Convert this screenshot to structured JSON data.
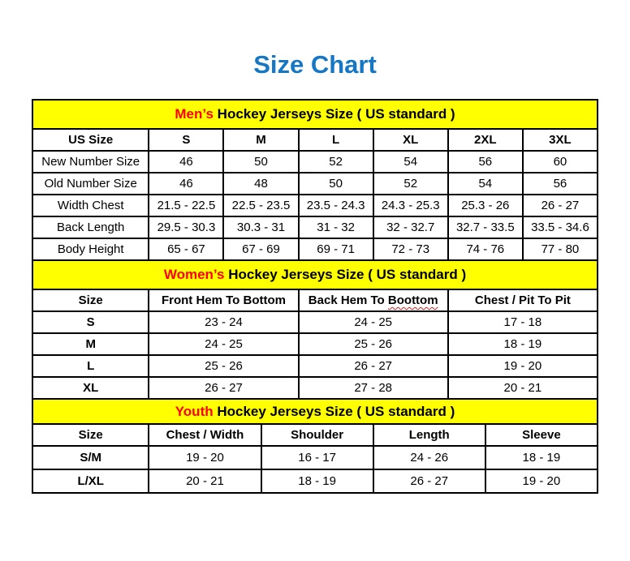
{
  "page": {
    "title": "Size Chart"
  },
  "colors": {
    "title_blue": "#1677c4",
    "band_yellow": "#ffff00",
    "highlight_red": "#ff0000",
    "border_black": "#000000",
    "squiggle_red": "#cc2222"
  },
  "men": {
    "band": {
      "highlight": "Men’s",
      "rest": "Hockey Jerseys Size ( US standard )"
    },
    "header": [
      "US Size",
      "S",
      "M",
      "L",
      "XL",
      "2XL",
      "3XL"
    ],
    "rows": [
      {
        "label": "New Number Size",
        "values": [
          "46",
          "50",
          "52",
          "54",
          "56",
          "60"
        ]
      },
      {
        "label": "Old Number Size",
        "values": [
          "46",
          "48",
          "50",
          "52",
          "54",
          "56"
        ]
      },
      {
        "label": "Width Chest",
        "values": [
          "21.5 - 22.5",
          "22.5 - 23.5",
          "23.5 - 24.3",
          "24.3 - 25.3",
          "25.3 - 26",
          "26 - 27"
        ]
      },
      {
        "label": "Back Length",
        "values": [
          "29.5 - 30.3",
          "30.3 - 31",
          "31 - 32",
          "32 - 32.7",
          "32.7 - 33.5",
          "33.5 - 34.6"
        ]
      },
      {
        "label": "Body Height",
        "values": [
          "65 - 67",
          "67 - 69",
          "69 - 71",
          "72 - 73",
          "74 - 76",
          "77 - 80"
        ]
      }
    ]
  },
  "women": {
    "band": {
      "highlight": "Women’s",
      "rest": "Hockey Jerseys Size ( US standard )"
    },
    "header_cells": [
      {
        "text": "Size"
      },
      {
        "text": "Front Hem To Bottom"
      },
      {
        "prefix": "Back Hem To",
        "misspelled": "Boottom"
      },
      {
        "text": "Chest / Pit To Pit"
      }
    ],
    "rows": [
      {
        "label": "S",
        "values": [
          "23 - 24",
          "24 - 25",
          "17 - 18"
        ]
      },
      {
        "label": "M",
        "values": [
          "24 - 25",
          "25 - 26",
          "18 - 19"
        ]
      },
      {
        "label": "L",
        "values": [
          "25 - 26",
          "26 - 27",
          "19 - 20"
        ]
      },
      {
        "label": "XL",
        "values": [
          "26 - 27",
          "27 - 28",
          "20 - 21"
        ]
      }
    ]
  },
  "youth": {
    "band": {
      "highlight": "Youth",
      "rest": "Hockey Jerseys Size ( US standard )"
    },
    "header": [
      "Size",
      "Chest / Width",
      "Shoulder",
      "Length",
      "Sleeve"
    ],
    "rows": [
      {
        "label": "S/M",
        "values": [
          "19 - 20",
          "16 - 17",
          "24 - 26",
          "18 - 19"
        ]
      },
      {
        "label": "L/XL",
        "values": [
          "20 - 21",
          "18 - 19",
          "26 - 27",
          "19 - 20"
        ]
      }
    ]
  }
}
